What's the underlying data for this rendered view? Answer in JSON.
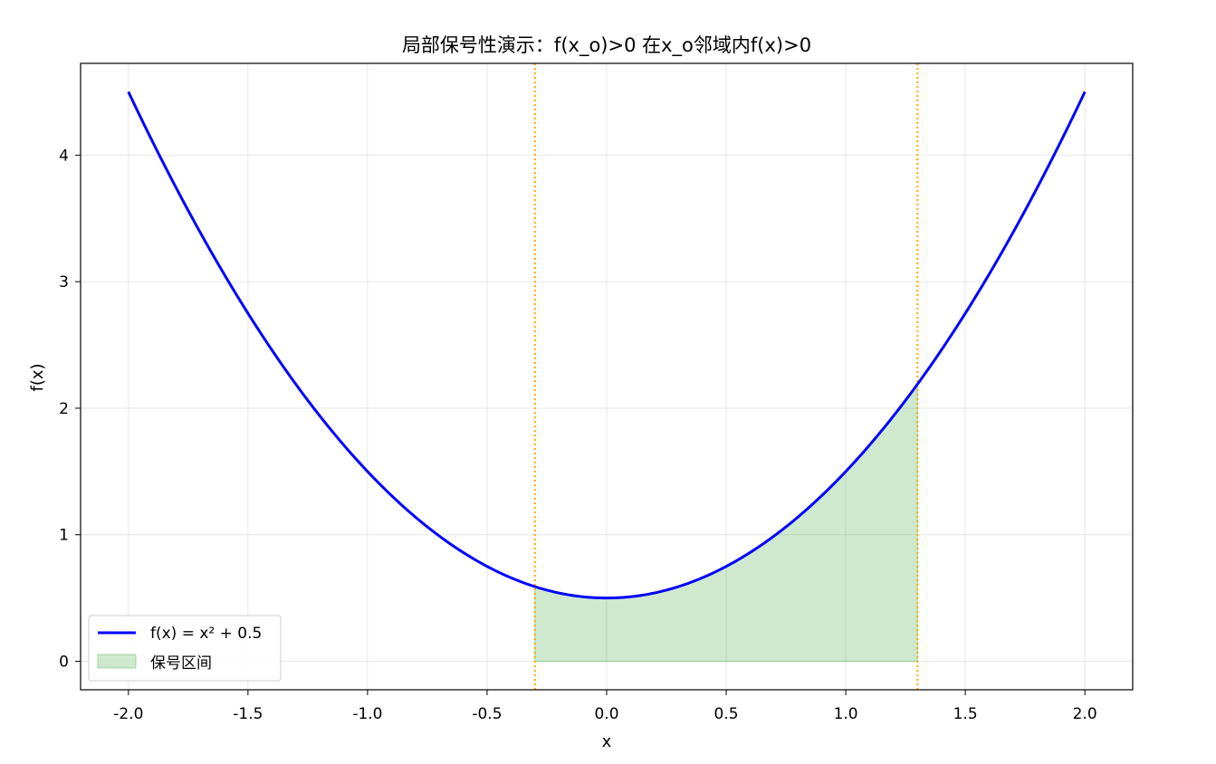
{
  "chart_data": {
    "type": "line",
    "title": "局部保号性演示：f(x_o)>0 在x_o邻域内f(x)>0",
    "xlabel": "x",
    "ylabel": "f(x)",
    "xlim": [
      -2.2,
      2.2
    ],
    "ylim": [
      -0.225,
      4.725
    ],
    "xticks": [
      -2.0,
      -1.5,
      -1.0,
      -0.5,
      0.0,
      0.5,
      1.0,
      1.5,
      2.0
    ],
    "xtick_labels": [
      "-2.0",
      "-1.5",
      "-1.0",
      "-0.5",
      "0.0",
      "0.5",
      "1.0",
      "1.5",
      "2.0"
    ],
    "yticks": [
      0,
      1,
      2,
      3,
      4
    ],
    "ytick_labels": [
      "0",
      "1",
      "2",
      "3",
      "4"
    ],
    "grid": true,
    "legend_position": "lower-left",
    "series": [
      {
        "name": "f(x) = x² + 0.5",
        "kind": "line",
        "color": "#0000ff",
        "function": "x^2 + 0.5",
        "x_range": [
          -2.0,
          2.0
        ]
      },
      {
        "name": "保号区间",
        "kind": "fill_between",
        "color": "#2ca02c",
        "opacity": 0.23,
        "x_range": [
          -0.3,
          1.3
        ]
      }
    ],
    "vertical_lines": [
      {
        "x": -0.3,
        "color": "#ffa500",
        "style": "dotted"
      },
      {
        "x": 1.3,
        "color": "#ffa500",
        "style": "dotted"
      }
    ]
  }
}
